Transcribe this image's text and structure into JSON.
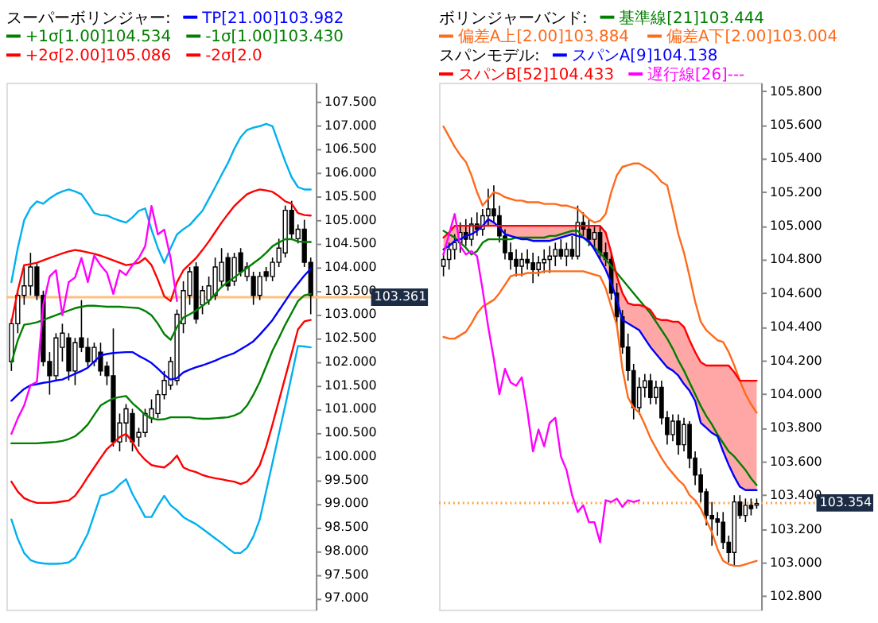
{
  "chart_data": [
    {
      "type": "candlestick",
      "title": "スーパーボリンジャー:",
      "legend": "top",
      "grid": false,
      "tick_labels": "y",
      "categories": [
        null,
        null,
        null,
        null,
        null,
        null,
        null,
        null,
        null,
        null,
        null,
        null,
        null,
        null,
        null,
        null,
        null,
        null,
        null,
        null,
        null,
        null,
        null,
        null,
        null,
        null,
        null,
        null,
        null,
        null,
        null,
        null,
        null,
        null,
        null,
        null,
        null,
        null,
        null,
        null,
        null,
        null,
        null,
        null,
        null,
        null,
        null,
        null
      ],
      "ohlc": [
        [
          102.0,
          102.9,
          101.8,
          102.8
        ],
        [
          102.8,
          103.5,
          102.6,
          103.4
        ],
        [
          103.4,
          104.0,
          103.2,
          103.6
        ],
        [
          103.6,
          104.3,
          103.4,
          104.0
        ],
        [
          104.0,
          104.1,
          103.3,
          103.4
        ],
        [
          103.4,
          103.5,
          101.9,
          102.0
        ],
        [
          102.0,
          102.2,
          101.3,
          101.7
        ],
        [
          101.7,
          102.6,
          101.6,
          102.5
        ],
        [
          102.3,
          102.8,
          102.0,
          102.6
        ],
        [
          102.5,
          102.6,
          101.6,
          101.8
        ],
        [
          101.8,
          102.5,
          101.5,
          102.4
        ],
        [
          102.5,
          103.3,
          102.2,
          102.3
        ],
        [
          102.3,
          102.5,
          101.9,
          102.0
        ],
        [
          102.0,
          102.4,
          101.9,
          102.3
        ],
        [
          102.2,
          102.4,
          101.7,
          101.8
        ],
        [
          101.9,
          102.0,
          101.5,
          101.7
        ],
        [
          101.7,
          102.7,
          100.2,
          100.3
        ],
        [
          100.3,
          100.9,
          100.1,
          100.7
        ],
        [
          100.7,
          101.1,
          100.3,
          101.0
        ],
        [
          100.9,
          101.0,
          100.1,
          100.3
        ],
        [
          100.4,
          100.6,
          100.2,
          100.5
        ],
        [
          100.5,
          101.0,
          100.4,
          100.9
        ],
        [
          100.8,
          101.2,
          100.7,
          101.0
        ],
        [
          100.9,
          101.4,
          100.8,
          101.3
        ],
        [
          101.3,
          101.8,
          101.2,
          101.6
        ],
        [
          101.5,
          102.1,
          101.4,
          102.0
        ],
        [
          101.6,
          103.1,
          101.5,
          103.0
        ],
        [
          102.8,
          103.7,
          102.6,
          103.5
        ],
        [
          103.4,
          104.0,
          103.2,
          103.9
        ],
        [
          104.0,
          104.1,
          102.8,
          102.9
        ],
        [
          103.2,
          103.6,
          103.0,
          103.5
        ],
        [
          103.3,
          103.8,
          103.2,
          103.6
        ],
        [
          103.4,
          104.2,
          103.3,
          104.0
        ],
        [
          103.7,
          104.4,
          103.6,
          104.1
        ],
        [
          104.2,
          104.3,
          103.5,
          103.6
        ],
        [
          103.7,
          104.3,
          103.6,
          104.2
        ],
        [
          104.3,
          104.4,
          103.8,
          103.9
        ],
        [
          103.8,
          104.1,
          103.7,
          104.0
        ],
        [
          103.8,
          103.9,
          103.2,
          103.4
        ],
        [
          103.4,
          103.9,
          103.3,
          103.8
        ],
        [
          103.9,
          104.0,
          103.7,
          103.8
        ],
        [
          103.8,
          104.2,
          103.7,
          104.1
        ],
        [
          104.1,
          104.6,
          104.0,
          104.4
        ],
        [
          104.3,
          105.3,
          104.2,
          105.2
        ],
        [
          105.2,
          105.4,
          104.6,
          104.7
        ],
        [
          104.6,
          104.9,
          104.5,
          104.8
        ],
        [
          104.8,
          105.0,
          104.0,
          104.1
        ],
        [
          104.1,
          104.2,
          103.0,
          103.4
        ]
      ],
      "series": [
        {
          "name": "TP[21.00]103.982",
          "type": "line",
          "color": "#0000ff",
          "values": [
            101.17,
            101.3,
            101.42,
            101.5,
            101.52,
            101.55,
            101.57,
            101.6,
            101.62,
            101.68,
            101.74,
            101.8,
            101.87,
            102.0,
            102.13,
            102.16,
            102.18,
            102.19,
            102.2,
            102.2,
            102.12,
            102.05,
            101.97,
            101.85,
            101.72,
            101.62,
            101.65,
            101.77,
            101.83,
            101.88,
            101.92,
            101.97,
            102.02,
            102.08,
            102.13,
            102.18,
            102.26,
            102.34,
            102.43,
            102.57,
            102.72,
            102.88,
            103.08,
            103.28,
            103.48,
            103.65,
            103.82,
            103.96
          ]
        },
        {
          "name": "+1σ[1.00]104.534",
          "type": "line",
          "color": "#008000",
          "values": [
            101.97,
            102.45,
            102.78,
            102.8,
            102.83,
            102.88,
            102.93,
            102.98,
            103.03,
            103.08,
            103.13,
            103.16,
            103.18,
            103.18,
            103.17,
            103.16,
            103.16,
            103.16,
            103.15,
            103.14,
            103.13,
            103.07,
            102.98,
            102.8,
            102.58,
            102.46,
            102.73,
            102.93,
            103.0,
            103.08,
            103.18,
            103.28,
            103.43,
            103.58,
            103.68,
            103.78,
            103.88,
            103.98,
            104.08,
            104.18,
            104.3,
            104.44,
            104.52,
            104.59,
            104.59,
            104.54,
            104.53,
            104.53
          ]
        },
        {
          "name": "-1σ[1.00]103.430",
          "type": "line",
          "color": "#008000",
          "values": [
            100.27,
            100.27,
            100.27,
            100.27,
            100.27,
            100.28,
            100.29,
            100.3,
            100.32,
            100.36,
            100.42,
            100.53,
            100.67,
            100.87,
            101.07,
            101.15,
            101.22,
            101.25,
            101.27,
            101.12,
            101.0,
            100.87,
            100.8,
            100.77,
            100.78,
            100.82,
            100.82,
            100.82,
            100.82,
            100.8,
            100.79,
            100.79,
            100.8,
            100.81,
            100.82,
            100.86,
            100.92,
            101.07,
            101.3,
            101.57,
            101.9,
            102.23,
            102.5,
            102.78,
            103.03,
            103.28,
            103.4,
            103.43
          ]
        },
        {
          "name": "+2σ[2.00]105.086",
          "type": "line",
          "color": "#ff0000",
          "values": [
            102.83,
            103.5,
            104.04,
            104.06,
            104.09,
            104.14,
            104.19,
            104.24,
            104.29,
            104.33,
            104.36,
            104.34,
            104.31,
            104.28,
            104.24,
            104.19,
            104.14,
            104.09,
            104.04,
            104.06,
            104.09,
            104.19,
            104.04,
            103.73,
            103.38,
            103.28,
            103.68,
            103.93,
            104.06,
            104.19,
            104.36,
            104.54,
            104.74,
            104.94,
            105.12,
            105.29,
            105.42,
            105.54,
            105.6,
            105.64,
            105.62,
            105.59,
            105.5,
            105.39,
            105.34,
            105.14,
            105.1,
            105.09
          ]
        },
        {
          "name": "-2σ[2.0",
          "type": "line",
          "color": "#ff0000",
          "values": [
            99.46,
            99.25,
            99.11,
            99.05,
            99.01,
            99.01,
            99.01,
            99.02,
            99.04,
            99.06,
            99.16,
            99.35,
            99.56,
            99.76,
            99.96,
            100.15,
            100.27,
            100.4,
            100.47,
            100.3,
            100.07,
            99.92,
            99.81,
            99.78,
            99.76,
            99.86,
            100.01,
            99.76,
            99.7,
            99.66,
            99.6,
            99.56,
            99.53,
            99.51,
            99.48,
            99.46,
            99.41,
            99.46,
            99.6,
            99.81,
            100.2,
            100.67,
            101.17,
            101.67,
            102.17,
            102.68,
            102.85,
            102.88
          ]
        },
        {
          "type": "line",
          "color": "#00b0f0",
          "values": [
            103.68,
            104.4,
            104.99,
            105.25,
            105.39,
            105.34,
            105.45,
            105.54,
            105.6,
            105.64,
            105.6,
            105.54,
            105.35,
            105.14,
            105.1,
            105.09,
            105.03,
            104.98,
            104.94,
            105.05,
            105.19,
            105.24,
            104.79,
            104.4,
            104.09,
            104.4,
            104.69,
            104.8,
            104.89,
            105.04,
            105.19,
            105.44,
            105.69,
            105.95,
            106.2,
            106.5,
            106.75,
            106.9,
            106.95,
            106.98,
            107.03,
            106.98,
            106.6,
            106.23,
            105.9,
            105.69,
            105.64,
            105.64
          ]
        },
        {
          "type": "line",
          "color": "#00b0f0",
          "values": [
            98.66,
            98.25,
            97.95,
            97.8,
            97.75,
            97.73,
            97.72,
            97.72,
            97.73,
            97.75,
            97.85,
            98.1,
            98.36,
            98.76,
            99.16,
            99.2,
            99.26,
            99.4,
            99.51,
            99.2,
            98.96,
            98.71,
            98.71,
            98.95,
            99.16,
            98.96,
            98.85,
            98.71,
            98.63,
            98.56,
            98.46,
            98.36,
            98.26,
            98.16,
            98.05,
            97.95,
            97.95,
            98.06,
            98.3,
            98.66,
            99.26,
            99.86,
            100.47,
            101.07,
            101.7,
            102.33,
            102.32,
            102.3
          ]
        },
        {
          "type": "line",
          "color": "#ff00ff",
          "values": [
            100.47,
            100.8,
            101.07,
            101.5,
            101.57,
            103.2,
            103.8,
            103.93,
            102.98,
            103.68,
            103.78,
            104.19,
            103.68,
            104.24,
            104.04,
            103.88,
            103.43,
            103.93,
            103.83,
            104.04,
            104.19,
            104.44,
            105.29,
            104.69,
            104.79,
            104.19,
            103.28,
            null,
            null,
            null,
            null,
            null,
            null,
            null,
            null,
            null,
            null,
            null,
            null,
            null,
            null,
            null,
            null,
            null,
            null,
            null,
            null,
            null
          ]
        }
      ],
      "ylim": [
        96.75,
        107.9
      ],
      "yticks": [
        {
          "value": 97,
          "label": "97.000"
        },
        {
          "value": 97.5,
          "label": "97.500"
        },
        {
          "value": 98,
          "label": "98.000"
        },
        {
          "value": 98.5,
          "label": "98.500"
        },
        {
          "value": 99,
          "label": "99.000"
        },
        {
          "value": 99.5,
          "label": "99.500"
        },
        {
          "value": 100,
          "label": "100.000"
        },
        {
          "value": 100.5,
          "label": "100.500"
        },
        {
          "value": 101,
          "label": "101.000"
        },
        {
          "value": 101.5,
          "label": "101.500"
        },
        {
          "value": 102,
          "label": "102.000"
        },
        {
          "value": 102.5,
          "label": "102.500"
        },
        {
          "value": 103,
          "label": "103.000"
        },
        {
          "value": 103.5,
          "label": "103.500"
        },
        {
          "value": 104,
          "label": "104.000"
        },
        {
          "value": 104.5,
          "label": "104.500"
        },
        {
          "value": 105,
          "label": "105.000"
        },
        {
          "value": 105.5,
          "label": "105.500"
        },
        {
          "value": 106,
          "label": "106.000"
        },
        {
          "value": 106.5,
          "label": "106.500"
        },
        {
          "value": 107,
          "label": "107.000"
        },
        {
          "value": 107.5,
          "label": "107.500"
        }
      ],
      "ref_lines": [
        {
          "axis": "y",
          "value": 103.361,
          "label": "103.361",
          "color": "#ffc080",
          "line_style": "solid"
        }
      ]
    },
    {
      "type": "candlestick",
      "title": "ボリンジャーバンド:",
      "legend": "top",
      "subtitle": "スパンモデル:",
      "grid": false,
      "tick_labels": "y",
      "categories": [
        null,
        null,
        null,
        null,
        null,
        null,
        null,
        null,
        null,
        null,
        null,
        null,
        null,
        null,
        null,
        null,
        null,
        null,
        null,
        null,
        null,
        null,
        null,
        null,
        null,
        null,
        null,
        null,
        null,
        null,
        null,
        null,
        null,
        null,
        null,
        null,
        null,
        null,
        null,
        null,
        null,
        null,
        null,
        null,
        null,
        null,
        null,
        null,
        null,
        null,
        null,
        null,
        null,
        null,
        null,
        null,
        null
      ],
      "ohlc": [
        [
          104.76,
          104.84,
          104.7,
          104.8
        ],
        [
          104.8,
          104.9,
          104.74,
          104.86
        ],
        [
          104.86,
          104.95,
          104.8,
          104.9
        ],
        [
          104.9,
          105.02,
          104.84,
          104.96
        ],
        [
          104.96,
          105.04,
          104.88,
          104.92
        ],
        [
          104.92,
          105.05,
          104.88,
          105.01
        ],
        [
          105.01,
          105.08,
          104.94,
          104.98
        ],
        [
          104.98,
          105.1,
          104.94,
          105.06
        ],
        [
          105.06,
          105.22,
          105.0,
          105.1
        ],
        [
          105.1,
          105.24,
          105.02,
          105.06
        ],
        [
          105.06,
          105.12,
          104.9,
          104.94
        ],
        [
          104.94,
          104.98,
          104.8,
          104.84
        ],
        [
          104.84,
          104.9,
          104.74,
          104.8
        ],
        [
          104.8,
          104.86,
          104.7,
          104.76
        ],
        [
          104.76,
          104.84,
          104.7,
          104.8
        ],
        [
          104.8,
          104.86,
          104.74,
          104.78
        ],
        [
          104.78,
          104.84,
          104.66,
          104.74
        ],
        [
          104.74,
          104.82,
          104.7,
          104.78
        ],
        [
          104.78,
          104.86,
          104.72,
          104.8
        ],
        [
          104.8,
          104.88,
          104.72,
          104.82
        ],
        [
          104.82,
          104.9,
          104.76,
          104.86
        ],
        [
          104.86,
          104.92,
          104.8,
          104.82
        ],
        [
          104.82,
          104.9,
          104.76,
          104.86
        ],
        [
          104.86,
          104.94,
          104.8,
          104.82
        ],
        [
          104.82,
          105.12,
          104.8,
          105.02
        ],
        [
          105.02,
          105.08,
          104.94,
          104.98
        ],
        [
          104.98,
          105.04,
          104.88,
          104.92
        ],
        [
          104.92,
          105.0,
          104.86,
          104.96
        ],
        [
          104.96,
          105.0,
          104.8,
          104.84
        ],
        [
          104.84,
          104.9,
          104.76,
          104.8
        ],
        [
          104.8,
          104.84,
          104.56,
          104.6
        ],
        [
          104.6,
          104.66,
          104.4,
          104.46
        ],
        [
          104.46,
          104.5,
          104.24,
          104.28
        ],
        [
          104.28,
          104.36,
          104.08,
          104.14
        ],
        [
          104.14,
          104.18,
          103.85,
          103.92
        ],
        [
          103.92,
          104.1,
          103.88,
          104.04
        ],
        [
          104.04,
          104.12,
          103.98,
          104.08
        ],
        [
          104.08,
          104.12,
          103.94,
          103.98
        ],
        [
          103.98,
          104.08,
          103.94,
          104.04
        ],
        [
          104.04,
          104.08,
          103.82,
          103.86
        ],
        [
          103.86,
          103.9,
          103.7,
          103.76
        ],
        [
          103.76,
          103.88,
          103.72,
          103.84
        ],
        [
          103.84,
          103.88,
          103.64,
          103.7
        ],
        [
          103.7,
          103.86,
          103.66,
          103.82
        ],
        [
          103.82,
          103.84,
          103.56,
          103.62
        ],
        [
          103.62,
          103.66,
          103.46,
          103.52
        ],
        [
          103.52,
          103.56,
          103.36,
          103.42
        ],
        [
          103.42,
          103.44,
          103.22,
          103.28
        ],
        [
          103.28,
          103.36,
          103.1,
          103.26
        ],
        [
          103.26,
          103.3,
          103.16,
          103.24
        ],
        [
          103.24,
          103.3,
          103.08,
          103.12
        ],
        [
          103.12,
          103.16,
          103.0,
          103.06
        ],
        [
          103.06,
          103.4,
          102.98,
          103.36
        ],
        [
          103.36,
          103.4,
          103.26,
          103.28
        ],
        [
          103.28,
          103.38,
          103.24,
          103.34
        ],
        [
          103.34,
          103.38,
          103.28,
          103.32
        ],
        [
          103.34,
          103.38,
          103.32,
          103.35
        ]
      ],
      "series": [
        {
          "name": "基準線[21]103.444",
          "type": "line",
          "color": "#008000",
          "values": [
            104.97,
            104.95,
            104.93,
            104.9,
            104.87,
            104.83,
            104.85,
            104.9,
            104.92,
            104.92,
            104.92,
            104.92,
            104.92,
            104.93,
            104.93,
            104.93,
            104.93,
            104.93,
            104.93,
            104.94,
            104.94,
            104.95,
            104.96,
            104.97,
            104.97,
            104.93,
            104.9,
            104.87,
            104.84,
            104.8,
            104.76,
            104.72,
            104.68,
            104.64,
            104.6,
            104.56,
            104.52,
            104.48,
            104.43,
            104.38,
            104.33,
            104.27,
            104.2,
            104.14,
            104.07,
            104.0,
            103.93,
            103.87,
            103.82,
            103.76,
            103.71,
            103.66,
            103.63,
            103.59,
            103.55,
            103.5,
            103.46
          ]
        },
        {
          "name": "偏差A上[2.00]103.884",
          "type": "line",
          "color": "#ff6a1a",
          "values": [
            105.59,
            105.53,
            105.47,
            105.42,
            105.38,
            105.3,
            105.2,
            105.12,
            105.16,
            105.2,
            105.19,
            105.17,
            105.16,
            105.15,
            105.15,
            105.14,
            105.14,
            105.14,
            105.13,
            105.13,
            105.13,
            105.12,
            105.12,
            105.11,
            105.1,
            105.07,
            105.04,
            105.02,
            105.03,
            105.07,
            105.2,
            105.3,
            105.35,
            105.36,
            105.37,
            105.37,
            105.35,
            105.33,
            105.3,
            105.26,
            105.24,
            105.1,
            104.95,
            104.84,
            104.7,
            104.55,
            104.43,
            104.38,
            104.35,
            104.32,
            104.31,
            104.25,
            104.17,
            104.08,
            104.0,
            103.94,
            103.89
          ]
        },
        {
          "name": "偏差A下[2.00]103.004",
          "type": "line",
          "color": "#ff6a1a",
          "values": [
            104.34,
            104.33,
            104.33,
            104.35,
            104.37,
            104.42,
            104.48,
            104.52,
            104.54,
            104.56,
            104.6,
            104.65,
            104.7,
            104.71,
            104.71,
            104.72,
            104.72,
            104.72,
            104.73,
            104.73,
            104.73,
            104.73,
            104.73,
            104.73,
            104.73,
            104.73,
            104.72,
            104.71,
            104.7,
            104.63,
            104.52,
            104.41,
            104.15,
            103.98,
            103.92,
            103.89,
            103.82,
            103.74,
            103.68,
            103.62,
            103.57,
            103.53,
            103.49,
            103.46,
            103.4,
            103.37,
            103.32,
            103.25,
            103.18,
            103.08,
            103.01,
            102.99,
            102.98,
            102.98,
            102.99,
            103.0,
            103.01
          ]
        },
        {
          "name": "スパンA[9]104.138",
          "type": "line",
          "color": "#0000ff",
          "values": [
            104.86,
            104.88,
            104.91,
            104.92,
            104.94,
            104.95,
            104.97,
            105.0,
            105.04,
            105.02,
            104.99,
            104.95,
            104.94,
            104.93,
            104.92,
            104.92,
            104.91,
            104.91,
            104.91,
            104.91,
            104.92,
            104.93,
            104.94,
            104.95,
            104.94,
            104.93,
            104.91,
            104.86,
            104.8,
            104.74,
            104.66,
            104.56,
            104.44,
            104.42,
            104.4,
            104.38,
            104.33,
            104.28,
            104.24,
            104.2,
            104.16,
            104.14,
            104.11,
            104.06,
            104.02,
            103.96,
            103.83,
            103.8,
            103.77,
            103.75,
            103.66,
            103.58,
            103.51,
            103.45,
            103.43,
            103.43,
            103.43
          ]
        },
        {
          "name": "スパンB[52]104.433",
          "type": "line",
          "color": "#ff0000",
          "values": [
            104.93,
            104.96,
            105.0,
            105.0,
            105.0,
            105.0,
            105.0,
            105.0,
            105.0,
            105.0,
            105.0,
            105.0,
            105.0,
            105.0,
            105.0,
            105.0,
            105.0,
            105.0,
            105.0,
            105.0,
            105.0,
            105.0,
            105.0,
            105.0,
            105.0,
            105.0,
            105.0,
            105.0,
            105.0,
            104.96,
            104.84,
            104.7,
            104.6,
            104.54,
            104.53,
            104.53,
            104.52,
            104.5,
            104.45,
            104.44,
            104.44,
            104.43,
            104.43,
            104.4,
            104.32,
            104.25,
            104.19,
            104.17,
            104.17,
            104.17,
            104.17,
            104.17,
            104.13,
            104.08,
            104.08,
            104.08,
            104.08
          ],
          "upper": [
            104.93,
            104.96,
            105.0,
            105.0,
            105.0,
            105.0,
            105.0,
            105.0,
            105.0,
            105.0,
            105.0,
            105.0,
            105.0,
            105.0,
            105.0,
            105.0,
            105.0,
            105.0,
            105.0,
            105.0,
            105.0,
            105.0,
            105.0,
            105.0,
            105.0,
            105.0,
            105.0,
            105.0,
            105.0,
            104.96,
            104.84,
            104.7,
            104.6,
            104.54,
            104.53,
            104.53,
            104.52,
            104.5,
            104.45,
            104.44,
            104.44,
            104.43,
            104.43,
            104.4,
            104.32,
            104.25,
            104.19,
            104.17,
            104.17,
            104.17,
            104.17,
            104.17,
            104.13,
            104.08,
            104.08,
            104.08,
            104.08
          ],
          "lower": [
            104.86,
            104.88,
            104.91,
            104.92,
            104.94,
            104.95,
            104.97,
            105.0,
            105.04,
            105.02,
            104.99,
            104.95,
            104.94,
            104.93,
            104.92,
            104.92,
            104.91,
            104.91,
            104.91,
            104.91,
            104.92,
            104.93,
            104.94,
            104.95,
            104.94,
            104.93,
            104.91,
            104.86,
            104.8,
            104.74,
            104.66,
            104.56,
            104.44,
            104.42,
            104.4,
            104.38,
            104.33,
            104.28,
            104.24,
            104.2,
            104.16,
            104.14,
            104.11,
            104.06,
            104.02,
            103.96,
            103.83,
            103.8,
            103.77,
            103.75,
            103.66,
            103.58,
            103.51,
            103.45,
            103.43,
            103.43,
            103.43
          ]
        },
        {
          "name": "遅行線[26]---",
          "type": "line",
          "color": "#ff00ff",
          "values": [
            104.83,
            104.95,
            105.07,
            104.88,
            104.83,
            104.85,
            104.82,
            104.62,
            104.4,
            104.21,
            104.0,
            104.15,
            104.07,
            104.05,
            104.1,
            103.9,
            103.66,
            103.79,
            103.69,
            103.83,
            103.86,
            103.63,
            103.55,
            103.4,
            103.3,
            103.34,
            103.24,
            103.24,
            103.12,
            103.37,
            103.36,
            103.38,
            103.33,
            103.37,
            103.36,
            103.37,
            null,
            null,
            null,
            null,
            null,
            null,
            null,
            null,
            null,
            null,
            null,
            null,
            null,
            null,
            null,
            null,
            null,
            null,
            null,
            null,
            null
          ]
        }
      ],
      "ylim": [
        102.72,
        105.85
      ],
      "yticks": [
        {
          "value": 102.8,
          "label": "102.800"
        },
        {
          "value": 103.0,
          "label": "103.000"
        },
        {
          "value": 103.2,
          "label": "103.200"
        },
        {
          "value": 103.4,
          "label": "103.400"
        },
        {
          "value": 103.6,
          "label": "103.600"
        },
        {
          "value": 103.8,
          "label": "103.800"
        },
        {
          "value": 104.0,
          "label": "104.000"
        },
        {
          "value": 104.2,
          "label": "104.200"
        },
        {
          "value": 104.4,
          "label": "104.400"
        },
        {
          "value": 104.6,
          "label": "104.600"
        },
        {
          "value": 104.8,
          "label": "104.800"
        },
        {
          "value": 105.0,
          "label": "105.000"
        },
        {
          "value": 105.2,
          "label": "105.200"
        },
        {
          "value": 105.4,
          "label": "105.400"
        },
        {
          "value": 105.6,
          "label": "105.600"
        },
        {
          "value": 105.8,
          "label": "105.800"
        }
      ],
      "ref_lines": [
        {
          "axis": "y",
          "value": 103.354,
          "label": "103.354",
          "color": "#ffa040",
          "line_style": "dotted"
        }
      ]
    }
  ]
}
